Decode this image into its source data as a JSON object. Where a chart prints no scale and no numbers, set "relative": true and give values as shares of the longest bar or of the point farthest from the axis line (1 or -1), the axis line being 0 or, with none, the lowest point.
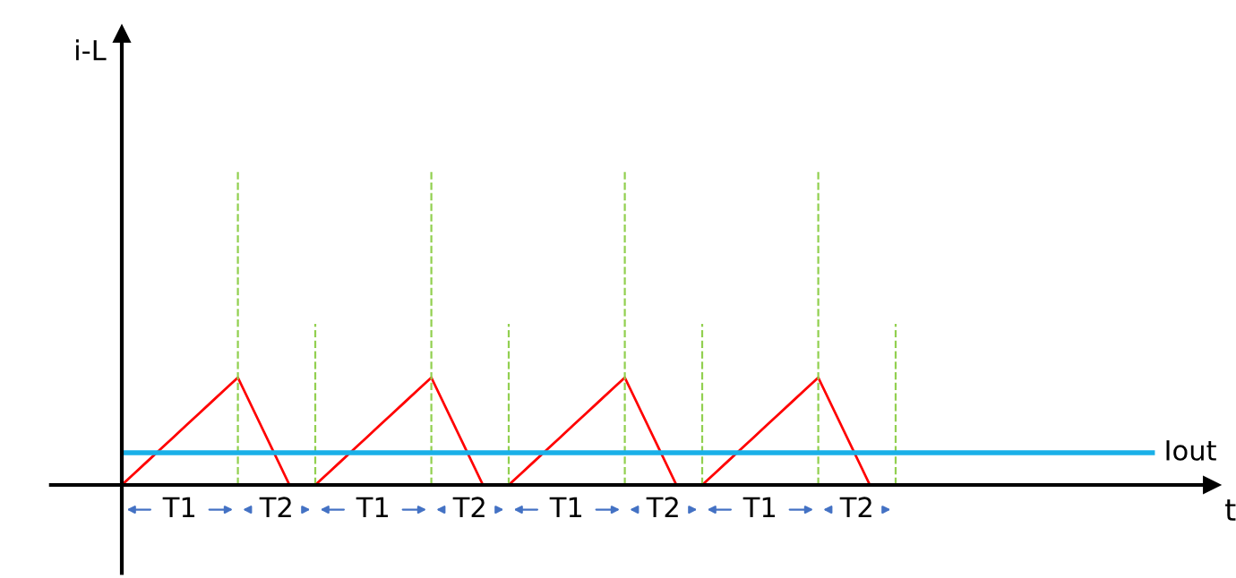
{
  "chart_data": {
    "type": "line",
    "relative": true,
    "categories": [
      null,
      null,
      null,
      null,
      null,
      null,
      null,
      null,
      null,
      null,
      null,
      null,
      null,
      null,
      null,
      null,
      null,
      null,
      null,
      null,
      null,
      null,
      null,
      null,
      null,
      null,
      null,
      null,
      null,
      null,
      null,
      null,
      null,
      null,
      null,
      null,
      null,
      null,
      null,
      null,
      null,
      null,
      null,
      null,
      null,
      null,
      null,
      null,
      null,
      null,
      null,
      null,
      null,
      null,
      null,
      null,
      null,
      null,
      null,
      null,
      null
    ],
    "series": [
      {
        "color": "#ff0000",
        "values": [
          0,
          0.111,
          0.222,
          0.333,
          0.444,
          0.556,
          0.667,
          0.778,
          0.889,
          1,
          0.75,
          0.5,
          0.25,
          0,
          0,
          0,
          0.111,
          0.222,
          0.333,
          0.444,
          0.556,
          0.667,
          0.778,
          0.889,
          1,
          0.75,
          0.5,
          0.25,
          0,
          0,
          0,
          0.111,
          0.222,
          0.333,
          0.444,
          0.556,
          0.667,
          0.778,
          0.889,
          1,
          0.75,
          0.5,
          0.25,
          0,
          0,
          0,
          0.111,
          0.222,
          0.333,
          0.444,
          0.556,
          0.667,
          0.778,
          0.889,
          1,
          0.75,
          0.5,
          0.25,
          0,
          0,
          0
        ]
      }
    ],
    "ref_lines": [
      {
        "axis": "y",
        "value": 0.3,
        "label": "Iout",
        "color": "#1ab0e8",
        "line_style": "solid"
      }
    ],
    "annotations": [
      "i-L",
      "t",
      "T1",
      "T2",
      "T1",
      "T2",
      "T1",
      "T2",
      "T1",
      "T2"
    ],
    "grid": "x",
    "marker": "none",
    "line_style": "solid"
  }
}
